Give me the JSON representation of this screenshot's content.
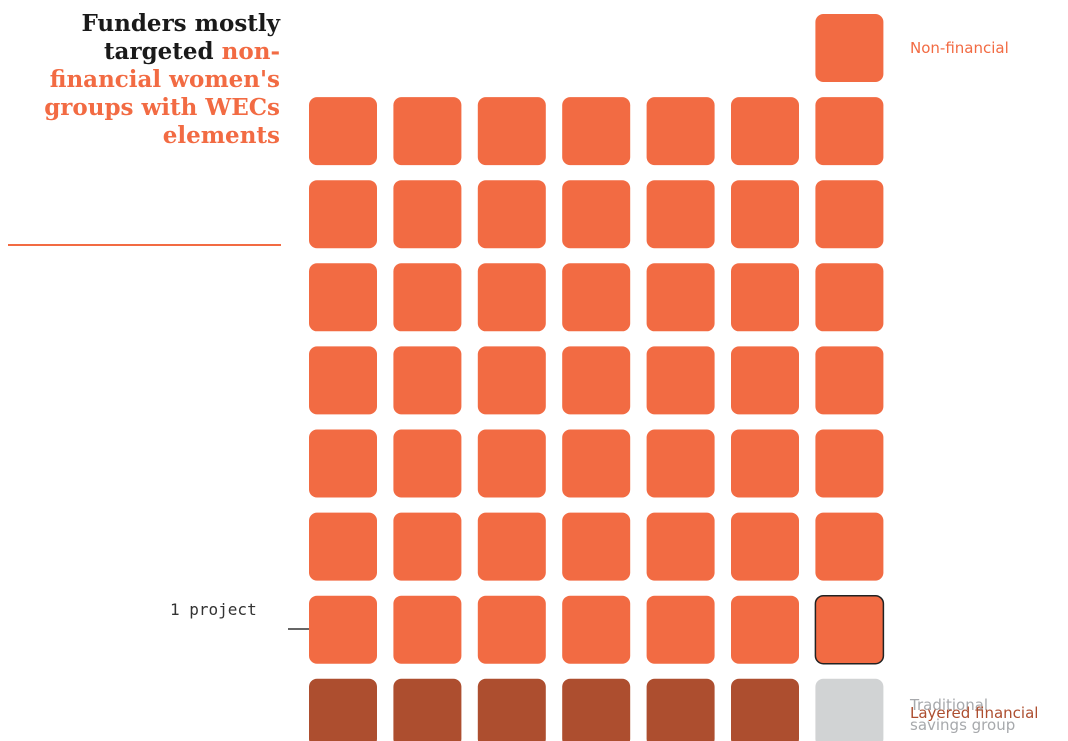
{
  "chart_data": {
    "type": "waffle",
    "title": {
      "lead": "Funders mostly targeted",
      "highlight": "non-financial women's groups with WECs elements"
    },
    "annotation": "1 project",
    "series": [
      {
        "name": "Non-financial",
        "color": "#f26b43",
        "value": 50
      },
      {
        "name": "Layered financial",
        "color": "#ad4e2f",
        "value": 6
      },
      {
        "name": "Traditional savings group",
        "color": "#d1d3d4",
        "value": 1
      }
    ]
  }
}
